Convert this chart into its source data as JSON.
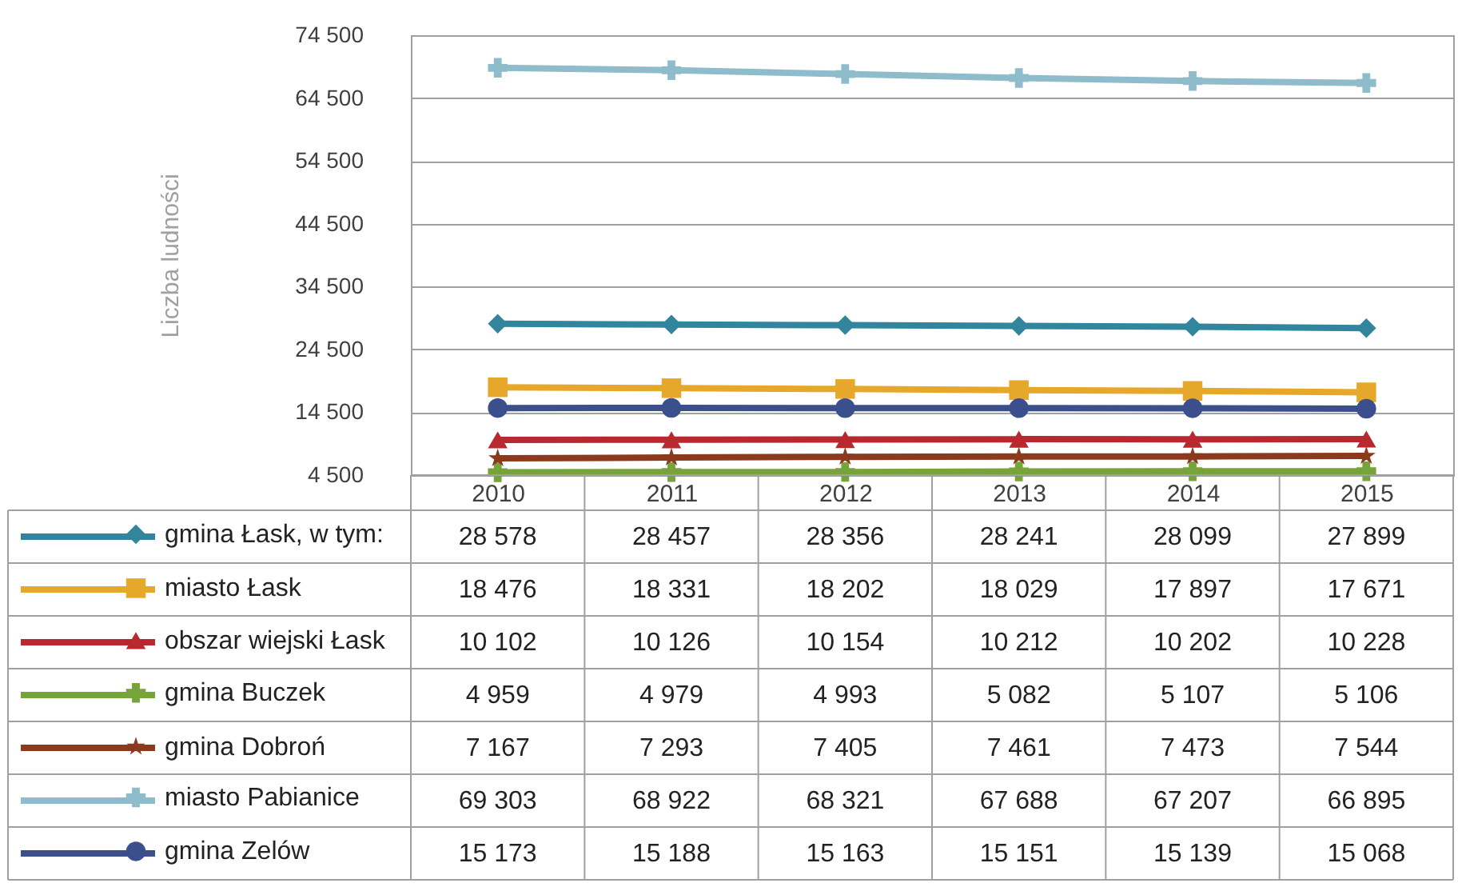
{
  "chart_data": {
    "type": "line",
    "ylabel": "Liczba ludności",
    "categories": [
      "2010",
      "2011",
      "2012",
      "2013",
      "2014",
      "2015"
    ],
    "ylim": [
      4500,
      74500
    ],
    "yticks": [
      {
        "value": 4500,
        "label": "4 500"
      },
      {
        "value": 14500,
        "label": "14 500"
      },
      {
        "value": 24500,
        "label": "24 500"
      },
      {
        "value": 34500,
        "label": "34 500"
      },
      {
        "value": 44500,
        "label": "44 500"
      },
      {
        "value": 54500,
        "label": "54 500"
      },
      {
        "value": 64500,
        "label": "64 500"
      },
      {
        "value": 74500,
        "label": "74 500"
      }
    ],
    "grid": "y",
    "legend": "bottom",
    "data_labels": true,
    "series": [
      {
        "name": "gmina Łask, w tym:",
        "color": "#31859c",
        "marker": "diamond",
        "values": [
          28578,
          28457,
          28356,
          28241,
          28099,
          27899
        ]
      },
      {
        "name": "miasto Łask",
        "color": "#e6a82a",
        "marker": "square",
        "values": [
          18476,
          18331,
          18202,
          18029,
          17897,
          17671
        ]
      },
      {
        "name": "obszar wiejski Łask",
        "color": "#b8282e",
        "marker": "triangle",
        "values": [
          10102,
          10126,
          10154,
          10212,
          10202,
          10228
        ]
      },
      {
        "name": "gmina Buczek",
        "color": "#77a33b",
        "marker": "cross",
        "values": [
          4959,
          4979,
          4993,
          5082,
          5107,
          5106
        ]
      },
      {
        "name": "gmina Dobroń",
        "color": "#8b3a1e",
        "marker": "star",
        "values": [
          7167,
          7293,
          7405,
          7461,
          7473,
          7544
        ]
      },
      {
        "name": "miasto Pabianice",
        "color": "#8fbccb",
        "marker": "cross",
        "values": [
          69303,
          68922,
          68321,
          67688,
          67207,
          66895
        ]
      },
      {
        "name": "gmina Zelów",
        "color": "#3a4f8c",
        "marker": "circle",
        "values": [
          15173,
          15188,
          15163,
          15151,
          15139,
          15068
        ]
      }
    ]
  }
}
